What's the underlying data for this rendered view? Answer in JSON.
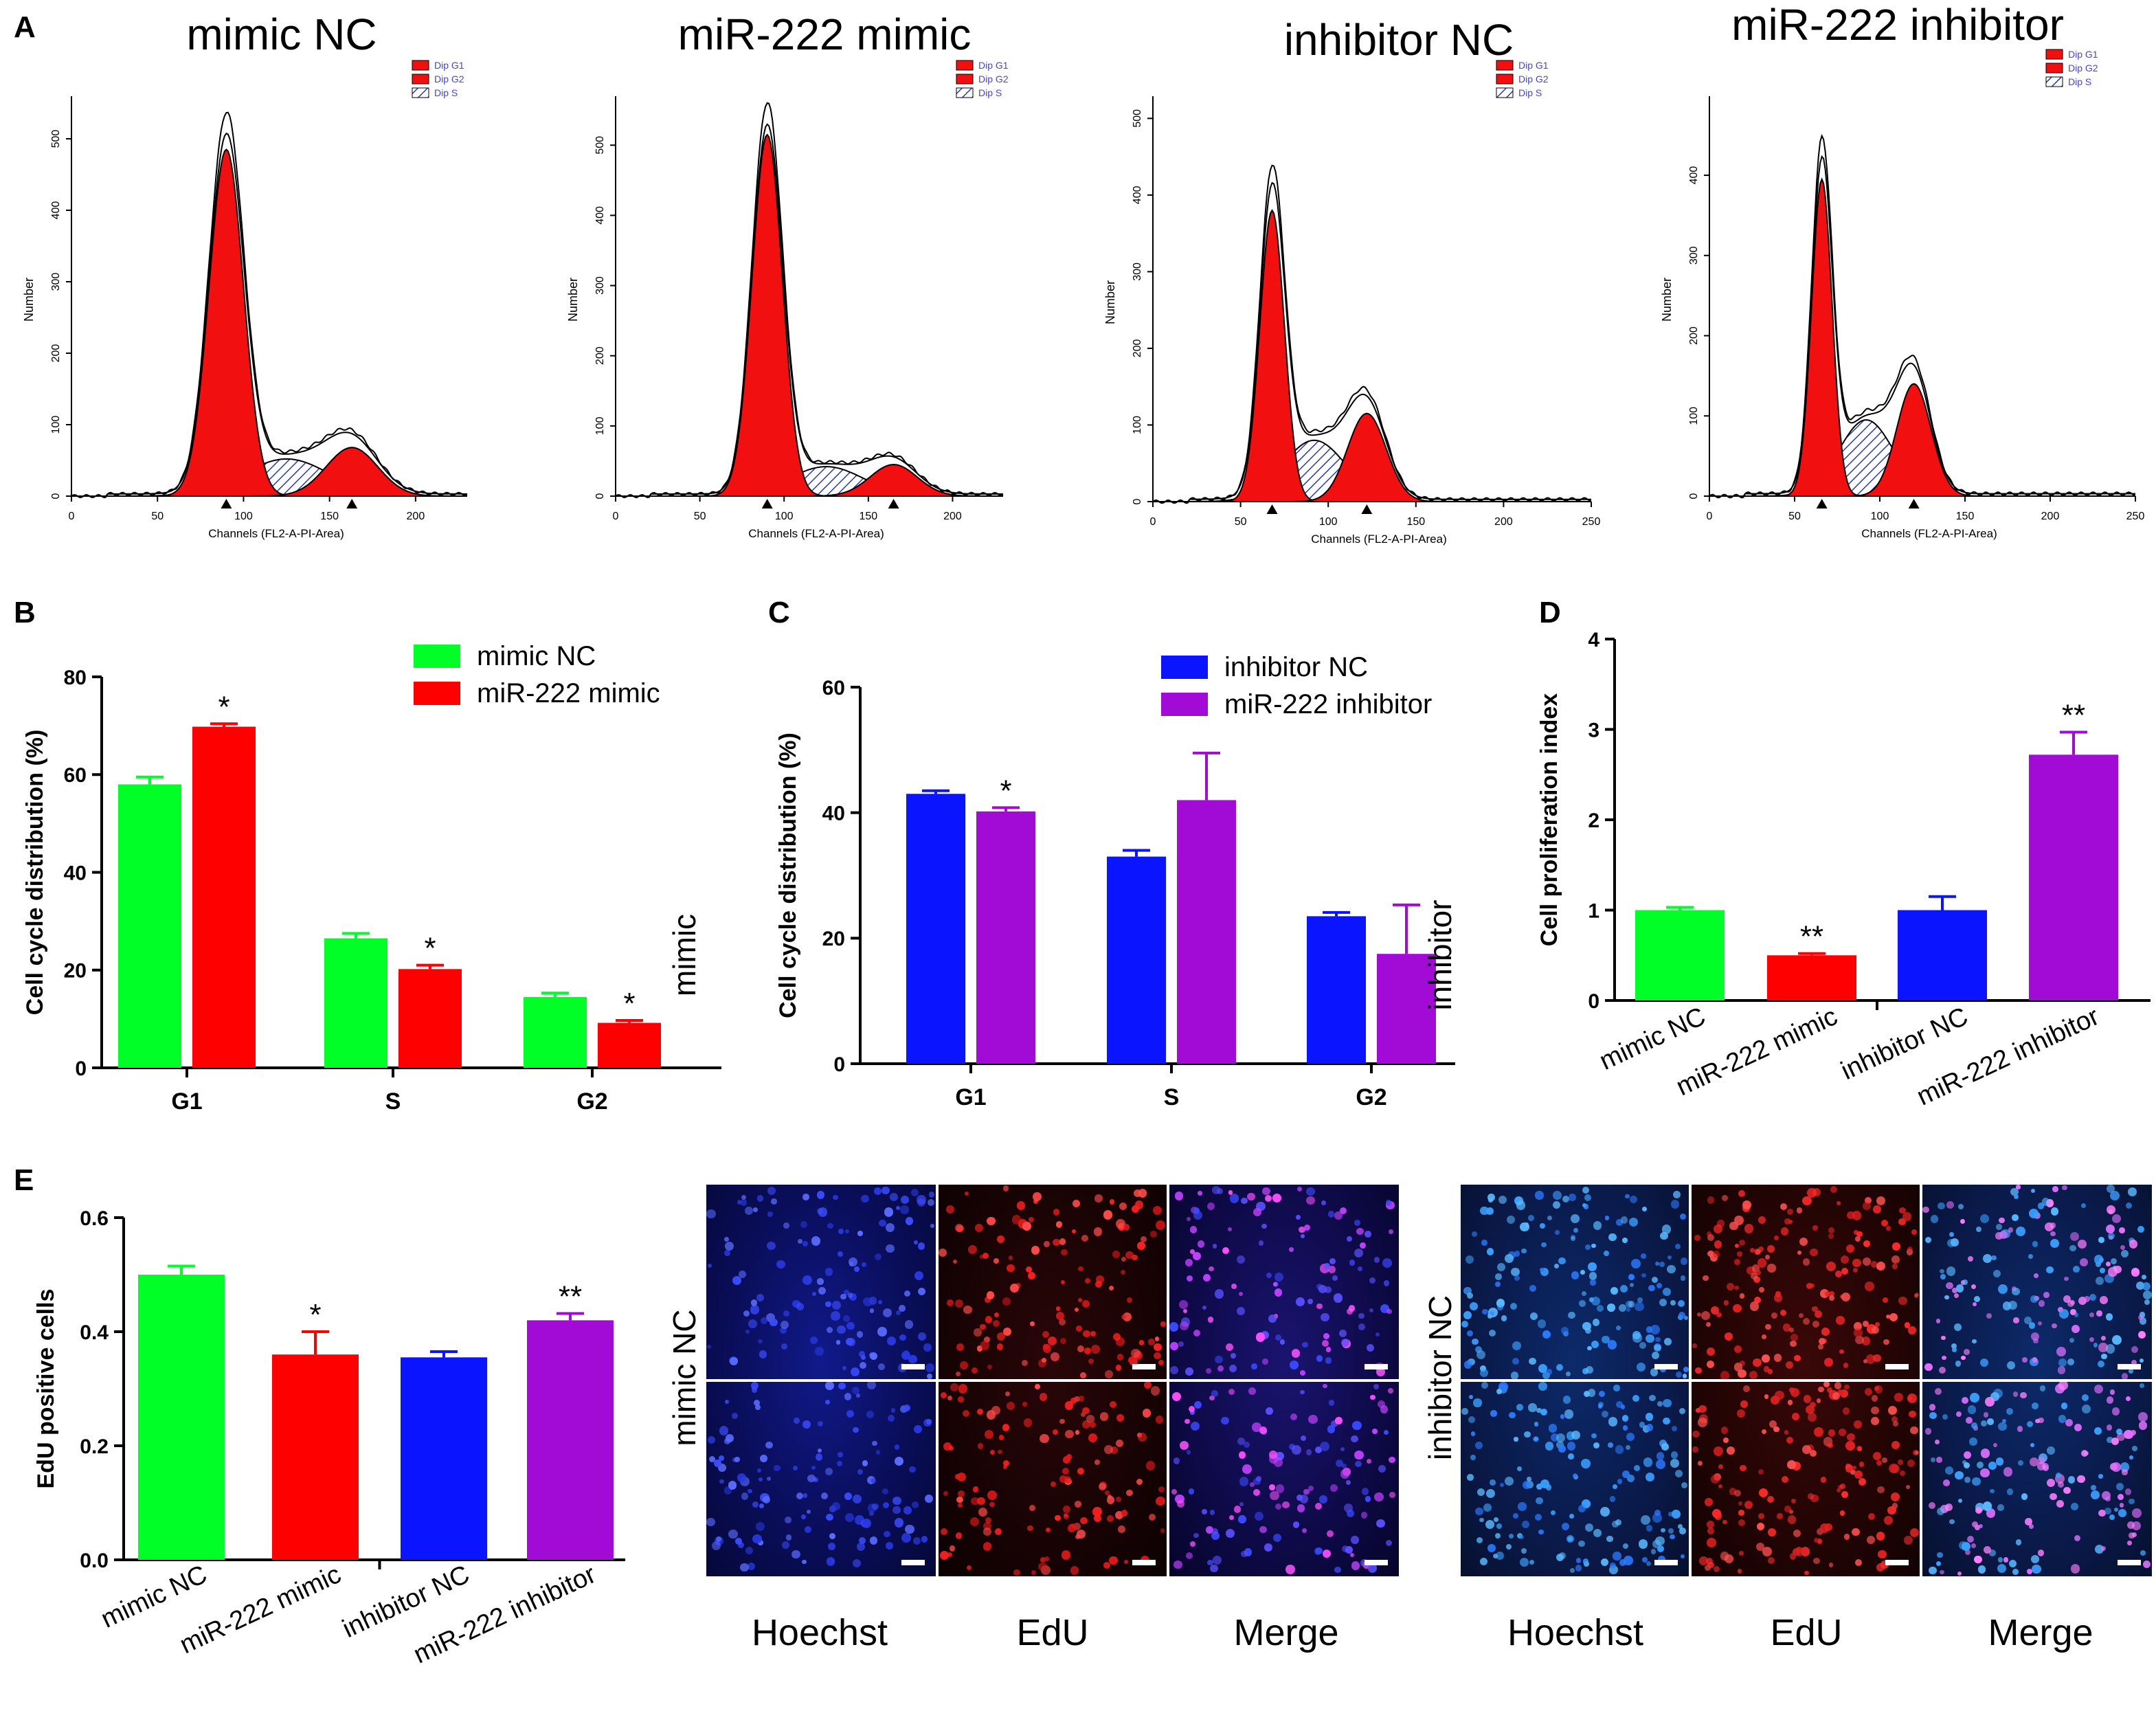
{
  "panel_letters": {
    "a": "A",
    "b": "B",
    "c": "C",
    "d": "D",
    "e": "E"
  },
  "colors": {
    "green": "#00ff26",
    "red": "#ff0000",
    "blue": "#0a14ff",
    "purple": "#a20ad6",
    "hist_red": "#f10f0f",
    "hatch_blue": "#2838b8",
    "legend_text": "#4040ff"
  },
  "histograms": [
    {
      "title": "mimic NC",
      "legend": [
        "Dip G1",
        "Dip G2",
        "Dip S"
      ],
      "xlabel": "Channels (FL2-A-PI-Area)",
      "ylabel": "Number",
      "xmax": 230,
      "xticks": [
        0,
        50,
        100,
        150,
        200
      ],
      "ymax": 550,
      "yticks": [
        0,
        100,
        200,
        300,
        400,
        500
      ],
      "g1": {
        "mu": 90,
        "sigma": 10,
        "amp": 485
      },
      "g2": {
        "mu": 163,
        "sigma": 15,
        "amp": 68
      },
      "s": {
        "mu": 125,
        "sigma": 25,
        "amp": 52
      }
    },
    {
      "title": "miR-222 mimic",
      "legend": [
        "Dip G1",
        "Dip G2",
        "Dip S"
      ],
      "xlabel": "Channels (FL2-A-PI-Area)",
      "ylabel": "Number",
      "xmax": 230,
      "xticks": [
        0,
        50,
        100,
        150,
        200
      ],
      "ymax": 560,
      "yticks": [
        0,
        100,
        200,
        300,
        400,
        500
      ],
      "g1": {
        "mu": 90,
        "sigma": 9,
        "amp": 515
      },
      "g2": {
        "mu": 165,
        "sigma": 14,
        "amp": 45
      },
      "s": {
        "mu": 125,
        "sigma": 22,
        "amp": 42
      }
    },
    {
      "title": "inhibitor NC",
      "legend": [
        "Dip G1",
        "Dip G2",
        "Dip S"
      ],
      "xlabel": "Channels (FL2-A-PI-Area)",
      "ylabel": "Number",
      "xmax": 250,
      "xticks": [
        0,
        50,
        100,
        150,
        200,
        250
      ],
      "ymax": 520,
      "yticks": [
        0,
        100,
        200,
        300,
        400,
        500
      ],
      "g1": {
        "mu": 68,
        "sigma": 7,
        "amp": 380
      },
      "g2": {
        "mu": 122,
        "sigma": 11,
        "amp": 115
      },
      "s": {
        "mu": 92,
        "sigma": 18,
        "amp": 80
      }
    },
    {
      "title": "miR-222 inhibitor",
      "legend": [
        "Dip G1",
        "Dip G2",
        "Dip S"
      ],
      "xlabel": "Channels (FL2-A-PI-Area)",
      "ylabel": "Number",
      "xmax": 250,
      "xticks": [
        0,
        50,
        100,
        150,
        200,
        250
      ],
      "ymax": 490,
      "yticks": [
        0,
        100,
        200,
        300,
        400
      ],
      "g1": {
        "mu": 66,
        "sigma": 6,
        "amp": 395
      },
      "g2": {
        "mu": 120,
        "sigma": 10,
        "amp": 140
      },
      "s": {
        "mu": 92,
        "sigma": 16,
        "amp": 95
      }
    }
  ],
  "chart_data": [
    {
      "id": "B",
      "type": "bar",
      "title": "",
      "categories": [
        "G1",
        "S",
        "G2"
      ],
      "series": [
        {
          "name": "mimic NC",
          "color": "#00ff26",
          "values": [
            58.0,
            26.5,
            14.5
          ],
          "errors": [
            1.5,
            1.0,
            0.8
          ],
          "sig": [
            "",
            "",
            ""
          ]
        },
        {
          "name": "miR-222 mimic",
          "color": "#ff0000",
          "values": [
            69.8,
            20.2,
            9.2
          ],
          "errors": [
            0.6,
            0.8,
            0.5
          ],
          "sig": [
            "*",
            "*",
            "*"
          ]
        }
      ],
      "xlabel": "",
      "ylabel": "Cell cycle distribution (%)",
      "ylim": [
        0,
        80
      ],
      "yticks": [
        0,
        20,
        40,
        60,
        80
      ],
      "legend": "top-right"
    },
    {
      "id": "C",
      "type": "bar",
      "title": "",
      "categories": [
        "G1",
        "S",
        "G2"
      ],
      "series": [
        {
          "name": "inhibitor NC",
          "color": "#0a14ff",
          "values": [
            43.0,
            33.0,
            23.5
          ],
          "errors": [
            0.5,
            1.0,
            0.6
          ],
          "sig": [
            "",
            "",
            ""
          ]
        },
        {
          "name": "miR-222 inhibitor",
          "color": "#a20ad6",
          "values": [
            40.2,
            42.0,
            17.5
          ],
          "errors": [
            0.6,
            7.5,
            7.8
          ],
          "sig": [
            "*",
            "",
            ""
          ]
        }
      ],
      "xlabel": "",
      "ylabel": "Cell cycle distribution (%)",
      "ylim": [
        0,
        60
      ],
      "yticks": [
        0,
        20,
        40,
        60
      ],
      "legend": "top-right"
    },
    {
      "id": "D",
      "type": "bar",
      "title": "",
      "categories": [
        "mimic NC",
        "miR-222 mimic",
        "inhibitor NC",
        "miR-222 inhibitor"
      ],
      "values": [
        1.0,
        0.5,
        1.0,
        2.72
      ],
      "errors": [
        0.03,
        0.02,
        0.15,
        0.25
      ],
      "colors": [
        "#00ff26",
        "#ff0000",
        "#0a14ff",
        "#a20ad6"
      ],
      "sig": [
        "",
        "**",
        "",
        "**"
      ],
      "xlabel": "",
      "ylabel": "Cell proliferation index",
      "ylim": [
        0,
        4
      ],
      "yticks": [
        0,
        1,
        2,
        3,
        4
      ]
    },
    {
      "id": "E",
      "type": "bar",
      "title": "",
      "categories": [
        "mimic NC",
        "miR-222 mimic",
        "inhibitor NC",
        "miR-222 inhibitor"
      ],
      "values": [
        0.5,
        0.36,
        0.355,
        0.42
      ],
      "errors": [
        0.015,
        0.04,
        0.01,
        0.012
      ],
      "colors": [
        "#00ff26",
        "#ff0000",
        "#0a14ff",
        "#a20ad6"
      ],
      "sig": [
        "",
        "*",
        "",
        "**"
      ],
      "xlabel": "",
      "ylabel": "EdU positive cells",
      "ylim": [
        0,
        0.6
      ],
      "yticks": [
        "0.0",
        "0.2",
        "0.4",
        "0.6"
      ]
    }
  ],
  "micrographs": {
    "set1": {
      "rows": [
        "mimic",
        "mimic NC"
      ],
      "columns": [
        "Hoechst",
        "EdU",
        "Merge"
      ]
    },
    "set2": {
      "rows": [
        "inhibitor",
        "inhibitor NC"
      ],
      "columns": [
        "Hoechst",
        "EdU",
        "Merge"
      ]
    }
  }
}
